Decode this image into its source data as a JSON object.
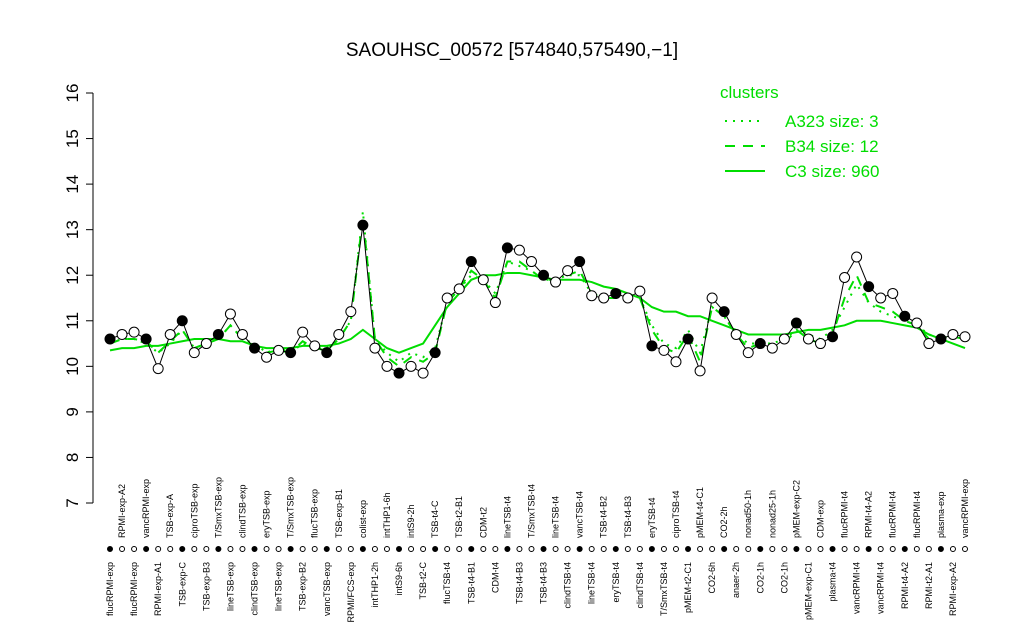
{
  "chart_data": {
    "type": "line",
    "title": "SAOUHSC_00572 [574840,575490,−1]",
    "ylim": [
      7,
      16
    ],
    "yticks": [
      7,
      8,
      9,
      10,
      11,
      12,
      13,
      14,
      15,
      16
    ],
    "legend_title": "clusters",
    "legend_position": "top-right",
    "categories": [
      "flucRPMI-exp",
      "RPMI-exp-A2",
      "flucRPMI-exp",
      "vancRPMI-exp",
      "RPMI-exp-A1",
      "TSB-exp-A",
      "TSB-exp-C",
      "ciproTSB-exp",
      "TSB-exp-B3",
      "T/SmxTSB-exp",
      "lineTSB-exp",
      "clindTSB-exp",
      "clindTSB-exp",
      "eryTSB-exp",
      "lineTSB-exp",
      "T/SmxTSB-exp",
      "TSB-exp-B2",
      "flucTSB-exp",
      "vancTSB-exp",
      "TSB-exp-B1",
      "RPMI/FCS-exp",
      "colist-exp",
      "intTHP1-2h",
      "intTHP1-6h",
      "intS9-6h",
      "intS9-2h",
      "TSB-t2-C",
      "TSB-t4-C",
      "flucTSB-t4",
      "TSB-t2-B1",
      "TSB-t4-B1",
      "CDM-t2",
      "CDM-t4",
      "lineTSB-t4",
      "TSB-t4-B3",
      "T/SmxTSB-t4",
      "TSB-t4-B3",
      "lineTSB-t4",
      "clindTSB-t4",
      "vancTSB-t4",
      "lineTSB-t4",
      "TSB-t4-B2",
      "eryTSB-t4",
      "TSB-t4-B3",
      "clindTSB-t4",
      "eryTSB-t4",
      "T/SmxTSB-t4",
      "ciproTSB-t4",
      "pMEM-t2-C1",
      "pMEM-t4-C1",
      "CO2-6h",
      "CO2-2h",
      "anaer-2h",
      "nonad50-1h",
      "CO2-1h",
      "nonad25-1h",
      "CO2-1h",
      "pMEM-exp-C2",
      "pMEM-exp-C1",
      "CDM-exp",
      "plasma-t4",
      "flucRPMI-t4",
      "vancRPMI-t4",
      "RPMI-t4-A2",
      "vancRPMI-t4",
      "flucRPMI-t4",
      "RPMI-t4-A2",
      "flucRPMI-t4",
      "RPMI-t2-A1",
      "plasma-exp",
      "RPMI-exp-A2",
      "vancRPMI-exp"
    ],
    "values": [
      10.6,
      10.7,
      10.75,
      10.6,
      9.95,
      10.7,
      11.0,
      10.3,
      10.5,
      10.7,
      11.15,
      10.7,
      10.4,
      10.2,
      10.35,
      10.3,
      10.75,
      10.45,
      10.3,
      10.7,
      11.2,
      13.1,
      10.4,
      10.0,
      9.85,
      10.0,
      9.85,
      10.3,
      11.5,
      11.7,
      12.3,
      11.9,
      11.4,
      12.6,
      12.55,
      12.3,
      12.0,
      11.85,
      12.1,
      12.3,
      11.55,
      11.5,
      11.6,
      11.5,
      11.65,
      10.45,
      10.35,
      10.1,
      10.6,
      9.9,
      11.5,
      11.2,
      10.7,
      10.3,
      10.5,
      10.4,
      10.6,
      10.95,
      10.6,
      10.5,
      10.65,
      11.95,
      12.4,
      11.75,
      11.5,
      11.6,
      11.1,
      10.95,
      10.5,
      10.6,
      10.7,
      10.65
    ],
    "series": [
      {
        "name": "A323 size: 3",
        "color": "#00dd00",
        "dash": "dotted",
        "values": [
          10.5,
          10.6,
          10.6,
          10.5,
          10.3,
          10.5,
          10.8,
          10.4,
          10.5,
          10.6,
          10.9,
          10.6,
          10.5,
          10.3,
          10.4,
          10.3,
          10.5,
          10.4,
          10.4,
          10.6,
          11.0,
          13.4,
          10.6,
          10.3,
          10.1,
          10.3,
          10.2,
          10.4,
          11.4,
          11.7,
          12.0,
          11.9,
          11.6,
          12.3,
          12.2,
          12.1,
          11.9,
          11.9,
          12.0,
          12.0,
          11.6,
          11.5,
          11.5,
          11.5,
          11.5,
          10.9,
          10.5,
          10.4,
          10.8,
          10.3,
          11.3,
          11.1,
          10.7,
          10.5,
          10.5,
          10.5,
          10.6,
          10.8,
          10.7,
          10.6,
          10.8,
          11.3,
          11.8,
          11.4,
          11.2,
          11.1,
          11.0,
          10.9,
          10.7,
          10.6,
          10.7,
          10.6
        ]
      },
      {
        "name": "B34 size: 12",
        "color": "#00dd00",
        "dash": "dashed",
        "values": [
          10.5,
          10.6,
          10.6,
          10.55,
          10.3,
          10.55,
          10.8,
          10.4,
          10.5,
          10.6,
          10.9,
          10.6,
          10.45,
          10.3,
          10.35,
          10.3,
          10.55,
          10.4,
          10.35,
          10.6,
          11.0,
          13.3,
          10.6,
          10.2,
          10.0,
          10.2,
          10.1,
          10.3,
          11.4,
          11.7,
          12.1,
          11.9,
          11.5,
          12.3,
          12.3,
          12.1,
          11.9,
          11.9,
          12.0,
          12.1,
          11.6,
          11.5,
          11.5,
          11.5,
          11.5,
          10.8,
          10.4,
          10.3,
          10.7,
          10.1,
          11.3,
          11.1,
          10.7,
          10.4,
          10.5,
          10.4,
          10.5,
          10.8,
          10.6,
          10.5,
          10.7,
          11.5,
          12.0,
          11.4,
          11.3,
          11.2,
          11.0,
          10.9,
          10.6,
          10.6,
          10.65,
          10.6
        ]
      },
      {
        "name": "C3 size: 960",
        "color": "#00dd00",
        "dash": "solid",
        "values": [
          10.35,
          10.4,
          10.4,
          10.45,
          10.45,
          10.5,
          10.55,
          10.6,
          10.6,
          10.6,
          10.55,
          10.55,
          10.45,
          10.4,
          10.4,
          10.4,
          10.45,
          10.45,
          10.45,
          10.5,
          10.6,
          10.8,
          10.6,
          10.4,
          10.3,
          10.4,
          10.5,
          10.9,
          11.3,
          11.6,
          11.9,
          12.0,
          12.0,
          12.05,
          12.05,
          12.0,
          11.95,
          11.9,
          11.9,
          11.9,
          11.85,
          11.75,
          11.7,
          11.6,
          11.5,
          11.3,
          11.2,
          11.2,
          11.1,
          11.1,
          11.0,
          10.9,
          10.8,
          10.7,
          10.7,
          10.7,
          10.7,
          10.75,
          10.8,
          10.8,
          10.85,
          10.9,
          11.0,
          11.0,
          11.0,
          10.95,
          10.9,
          10.85,
          10.7,
          10.6,
          10.5,
          10.4
        ]
      }
    ]
  }
}
